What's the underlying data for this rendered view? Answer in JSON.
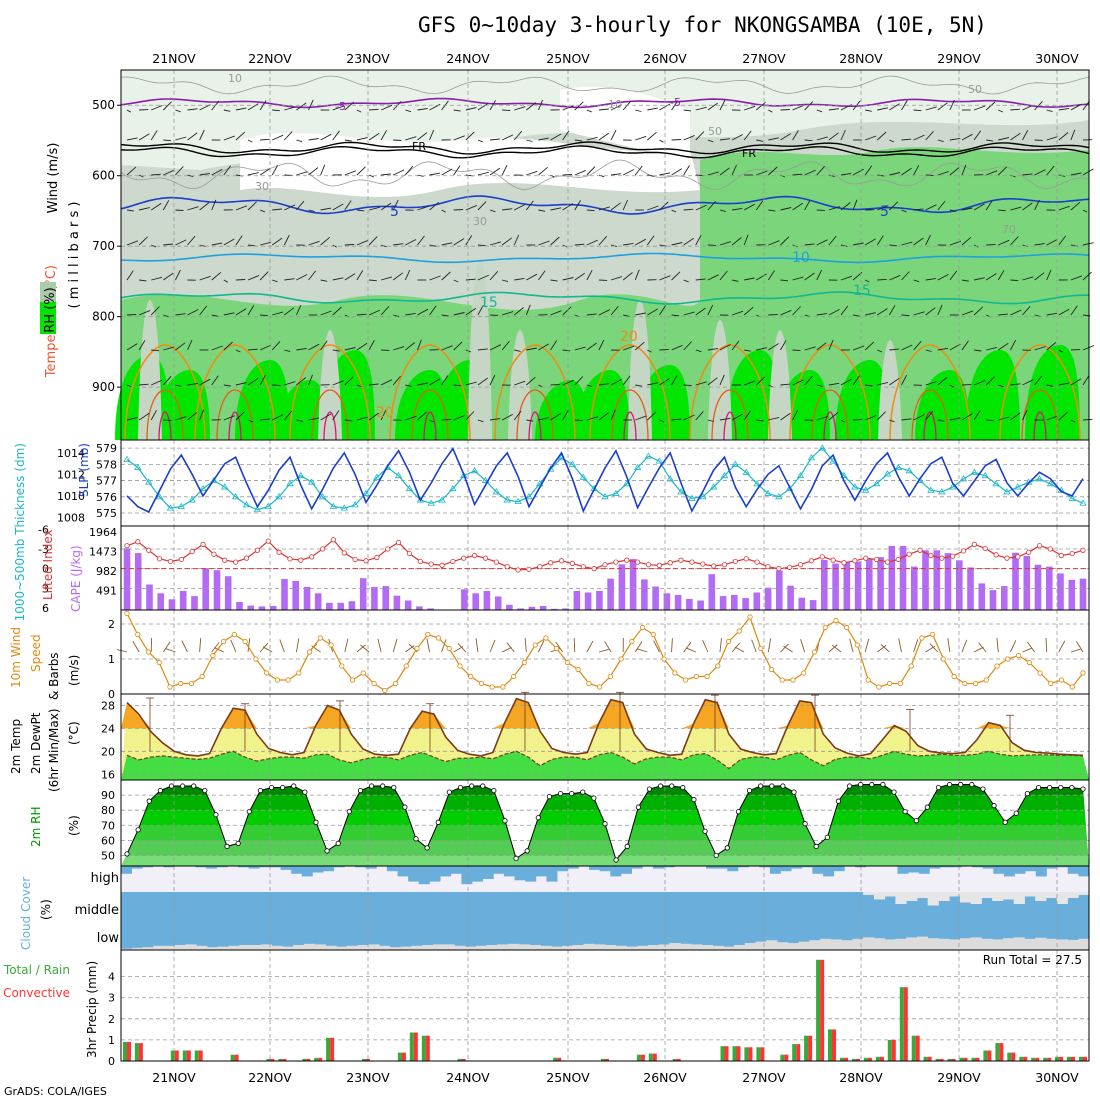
{
  "title": "GFS 0~10day 3-hourly for NKONGSAMBA (10E, 5N)",
  "credit": "GrADS: COLA/IGES",
  "dates": [
    "21NOV",
    "22NOV",
    "23NOV",
    "24NOV",
    "25NOV",
    "26NOV",
    "27NOV",
    "28NOV",
    "29NOV",
    "30NOV"
  ],
  "colors": {
    "rh_light": "#d7e8d7",
    "rh_mid": "#b9d3b9",
    "rh_green": "#66d066",
    "rh_bright": "#00e600",
    "slp": "#1a3ecc",
    "thick": "#1ab8c8",
    "li": "#dd3333",
    "cape": "#b36bf5",
    "wind": "#e08a10",
    "temp_hi": "#f5a623",
    "temp_mid": "#f2f28c",
    "dew": "#44dd44",
    "rh2m": "#009900",
    "cloud": "#6aaedc",
    "precip": "#3aa83a",
    "conv": "#ff3333"
  },
  "panels": {
    "upper": {
      "y_ticks": [
        "500",
        "600",
        "700",
        "800",
        "900"
      ],
      "ylabel_wind": "Wind (m/s)",
      "ylabel_temp": "Temperature (°C)",
      "ylabel_mb": "( m i l l i b a r s )",
      "ylabel_rh": "RH (%)",
      "labels": {
        "m5a": "-5",
        "m5b": "-5",
        "fr1": "FR",
        "fr2": "FR",
        "p5a": "5",
        "p5b": "5",
        "p10": "10",
        "p15a": "15",
        "p15b": "15",
        "p20a": "20",
        "p20b": "20",
        "r10a": "10",
        "r10b": "10",
        "r30a": "30",
        "r30b": "30",
        "r50a": "50",
        "r50b": "50",
        "r70": "70"
      }
    },
    "slp": {
      "ticks_left": [
        "579",
        "578",
        "577",
        "576",
        "575"
      ],
      "ticks_right": [
        "1014",
        "1012",
        "1010",
        "1008"
      ],
      "ylabel_thick": "1000~500mb Thickness (dm)",
      "ylabel_slp": "SLP (mb)"
    },
    "li": {
      "ticks_left": [
        "-6",
        "-3",
        "0",
        "3",
        "6"
      ],
      "ticks_right": [
        "1964",
        "1473",
        "982",
        "491"
      ],
      "ylabel_li": "Lifted Index",
      "ylabel_cape": "CAPE (J/kg)"
    },
    "wind": {
      "ticks": [
        "2",
        "1",
        "0"
      ],
      "ylabel_a": "10m Wind",
      "ylabel_b": "Speed",
      "ylabel_c": "& Barbs",
      "unit": "(m/s)"
    },
    "temp": {
      "ticks": [
        "28",
        "24",
        "20",
        "16"
      ],
      "ylabel_a": "2m Temp",
      "ylabel_b": "2m DewPt",
      "ylabel_c": "(6hr Min/Max)",
      "unit": "(°C)"
    },
    "rh": {
      "ticks": [
        "90",
        "80",
        "70",
        "60",
        "50"
      ],
      "ylabel": "2m RH",
      "unit": "(%)"
    },
    "cloud": {
      "levels": [
        "high",
        "middle",
        "low"
      ],
      "ylabel": "Cloud Cover",
      "unit": "(%)"
    },
    "precip": {
      "ticks": [
        "4",
        "3",
        "2",
        "1",
        "0"
      ],
      "ylabel_total": "Total / Rain",
      "ylabel_conv": "Convective",
      "ylabel": "3hr Precip (mm)",
      "run_total": "Run Total = 27.5"
    }
  },
  "chart_data": [
    {
      "type": "line",
      "title": "1000~500mb Thickness (dm)",
      "x": "3-hourly steps 20NOV18Z-30NOV21Z",
      "values": [
        578.3,
        577.8,
        576.9,
        576.0,
        575.3,
        575.4,
        575.8,
        576.5,
        577.0,
        576.6,
        576.0,
        575.5,
        575.2,
        575.4,
        576.0,
        576.8,
        577.3,
        576.9,
        576.0,
        575.4,
        575.3,
        575.5,
        576.2,
        577.2,
        577.8,
        577.3,
        576.5,
        575.8,
        575.6,
        575.8,
        576.5,
        577.3,
        577.6,
        577.0,
        576.3,
        575.8,
        575.7,
        576.0,
        576.8,
        577.7,
        578.4,
        578.0,
        577.2,
        576.5,
        576.0,
        576.2,
        576.8,
        577.8,
        578.5,
        578.2,
        577.1,
        576.3,
        575.9,
        576.0,
        576.6,
        577.3,
        578.0,
        577.5,
        576.8,
        576.2,
        576.0,
        576.5,
        577.3,
        578.4,
        579.0,
        578.2,
        577.3,
        576.6,
        576.4,
        576.8,
        577.4,
        577.8,
        577.6,
        577.0,
        576.4,
        576.3,
        576.6,
        577.1,
        577.5,
        577.3,
        576.8,
        576.3,
        576.6,
        576.9,
        577.1,
        576.8,
        576.4,
        575.9,
        575.6
      ]
    },
    {
      "type": "line",
      "title": "SLP (mb)",
      "x": "3-hourly steps 20NOV18Z-30NOV21Z",
      "values": [
        1010.0,
        1009.0,
        1008.5,
        1010.5,
        1012.5,
        1013.8,
        1012.0,
        1010.0,
        1011.5,
        1013.0,
        1013.6,
        1011.2,
        1009.0,
        1010.5,
        1012.4,
        1013.6,
        1011.0,
        1008.8,
        1010.6,
        1012.6,
        1014.0,
        1012.0,
        1009.4,
        1011.0,
        1012.8,
        1014.2,
        1012.2,
        1009.6,
        1011.2,
        1013.0,
        1014.4,
        1012.0,
        1009.2,
        1011.0,
        1012.8,
        1014.0,
        1011.8,
        1009.0,
        1010.8,
        1012.6,
        1014.0,
        1011.6,
        1008.6,
        1010.6,
        1012.6,
        1014.2,
        1011.8,
        1008.9,
        1010.8,
        1012.6,
        1014.0,
        1011.2,
        1008.6,
        1010.4,
        1012.4,
        1013.6,
        1010.8,
        1009.0,
        1010.6,
        1012.0,
        1012.8,
        1010.8,
        1008.8,
        1010.6,
        1012.8,
        1013.8,
        1011.4,
        1009.6,
        1011.4,
        1013.0,
        1014.0,
        1011.8,
        1010.0,
        1011.6,
        1013.0,
        1013.6,
        1011.2,
        1010.0,
        1011.4,
        1012.8,
        1013.4,
        1011.2,
        1010.0,
        1011.2,
        1012.2,
        1011.6,
        1010.4,
        1010.0,
        1011.6
      ]
    },
    {
      "type": "line",
      "title": "Lifted Index",
      "x": "3-hourly steps",
      "values": [
        -3.5,
        -4.1,
        -2.8,
        -1.5,
        -1.1,
        -1.4,
        -2.6,
        -3.7,
        -2.2,
        -1.3,
        -1.0,
        -1.6,
        -2.8,
        -4.2,
        -2.5,
        -1.5,
        -1.3,
        -1.8,
        -3.0,
        -4.4,
        -2.4,
        -1.4,
        -1.2,
        -1.7,
        -3.0,
        -4.0,
        -2.3,
        -1.1,
        -0.7,
        -0.5,
        -1.1,
        -1.6,
        -2.0,
        -1.6,
        -1.0,
        -0.3,
        0.2,
        0.1,
        -0.3,
        -0.9,
        -1.2,
        -0.8,
        -0.3,
        0.0,
        -0.6,
        -1.0,
        -1.3,
        -1.0,
        -0.6,
        -0.5,
        -0.9,
        -1.3,
        -1.0,
        -0.7,
        -0.4,
        -0.6,
        -1.1,
        -1.5,
        -1.0,
        -0.3,
        0.0,
        -0.2,
        -0.6,
        -1.2,
        -1.8,
        -1.3,
        -0.9,
        -1.2,
        -1.6,
        -1.4,
        -1.0,
        -1.4,
        -2.2,
        -2.8,
        -2.0,
        -1.6,
        -1.9,
        -2.7,
        -3.7,
        -3.1,
        -2.1,
        -1.6,
        -1.8,
        -2.5,
        -3.5,
        -3.0,
        -2.0,
        -2.3,
        -2.8
      ]
    },
    {
      "type": "bar",
      "title": "CAPE (J/kg)",
      "x": "3-hourly steps",
      "values": [
        1550,
        1430,
        640,
        420,
        270,
        480,
        350,
        1050,
        1000,
        850,
        200,
        110,
        90,
        100,
        780,
        730,
        580,
        420,
        180,
        180,
        220,
        800,
        580,
        600,
        360,
        240,
        90,
        40,
        10,
        0,
        520,
        420,
        480,
        340,
        130,
        40,
        80,
        100,
        30,
        40,
        480,
        440,
        480,
        790,
        1150,
        1280,
        770,
        590,
        420,
        380,
        280,
        240,
        900,
        350,
        380,
        300,
        440,
        560,
        990,
        610,
        310,
        250,
        1260,
        1170,
        1200,
        1220,
        1280,
        1330,
        1610,
        1610,
        1090,
        1500,
        1500,
        1430,
        1250,
        1070,
        670,
        500,
        600,
        1440,
        1360,
        1140,
        1090,
        920,
        760,
        790
      ]
    },
    {
      "type": "line",
      "title": "10m Wind Speed (m/s)",
      "x": "3-hourly steps",
      "values": [
        2.3,
        1.7,
        1.2,
        0.9,
        0.2,
        0.3,
        0.3,
        0.5,
        1.1,
        1.5,
        1.7,
        1.5,
        1.0,
        0.6,
        0.4,
        0.4,
        0.6,
        1.2,
        1.6,
        1.4,
        0.8,
        0.4,
        0.6,
        0.3,
        0.1,
        0.3,
        0.8,
        1.3,
        1.7,
        1.6,
        1.3,
        0.8,
        0.5,
        0.3,
        0.2,
        0.2,
        0.5,
        0.9,
        1.4,
        1.6,
        1.3,
        0.9,
        0.7,
        0.3,
        0.2,
        0.5,
        1.0,
        1.5,
        1.9,
        1.7,
        1.0,
        0.6,
        0.4,
        0.5,
        0.5,
        0.8,
        1.5,
        1.8,
        2.2,
        1.3,
        0.7,
        0.4,
        0.4,
        0.6,
        1.2,
        1.9,
        2.1,
        1.9,
        1.4,
        0.4,
        0.2,
        0.3,
        0.3,
        0.8,
        1.6,
        1.7,
        1.0,
        0.5,
        0.3,
        0.3,
        0.4,
        0.8,
        1.0,
        1.1,
        0.9,
        0.6,
        0.3,
        0.4,
        0.2,
        0.6
      ]
    },
    {
      "type": "area",
      "title": "2m Temp / DewPt (°C)",
      "x": "3-hourly steps",
      "temp": [
        28.5,
        26.5,
        23.5,
        21.5,
        20.0,
        19.4,
        19.2,
        19.6,
        24.0,
        27.5,
        27.2,
        23.0,
        20.5,
        19.8,
        19.4,
        19.8,
        24.5,
        28.0,
        27.2,
        23.0,
        20.4,
        19.5,
        19.3,
        19.5,
        24.0,
        27.0,
        26.5,
        22.5,
        20.2,
        19.5,
        19.2,
        19.8,
        25.0,
        29.2,
        28.5,
        23.5,
        20.5,
        19.8,
        19.5,
        19.8,
        25.0,
        29.0,
        28.5,
        23.0,
        20.4,
        19.8,
        19.3,
        19.5,
        24.8,
        29.0,
        28.5,
        23.0,
        20.4,
        19.8,
        19.4,
        19.6,
        24.5,
        28.8,
        28.5,
        23.0,
        20.6,
        19.7,
        19.2,
        19.6,
        22.0,
        24.5,
        23.5,
        21.0,
        20.0,
        19.7,
        19.6,
        19.8,
        22.0,
        25.0,
        24.5,
        21.5,
        20.2,
        19.8,
        19.7,
        19.5,
        19.4,
        19.3
      ],
      "dew": [
        19.3,
        18.5,
        19.0,
        19.2,
        19.0,
        18.8,
        18.6,
        18.8,
        19.5,
        20.0,
        19.0,
        18.3,
        18.7,
        19.0,
        19.0,
        18.8,
        19.4,
        19.5,
        18.5,
        18.0,
        18.6,
        19.0,
        19.0,
        18.5,
        19.3,
        19.8,
        19.0,
        18.2,
        18.8,
        18.8,
        19.0,
        18.7,
        19.5,
        20.0,
        19.0,
        17.5,
        18.6,
        19.0,
        19.0,
        18.5,
        19.4,
        19.8,
        19.0,
        17.8,
        18.7,
        19.0,
        19.0,
        18.5,
        19.4,
        19.6,
        18.5,
        17.0,
        18.6,
        19.0,
        19.0,
        18.5,
        19.3,
        19.8,
        18.5,
        17.5,
        18.6,
        19.0,
        19.0,
        18.7,
        19.3,
        20.0,
        19.5,
        19.2,
        19.3,
        19.5,
        19.3,
        19.3,
        19.5,
        20.0,
        19.5,
        19.2,
        19.3,
        19.4,
        19.4,
        19.3,
        19.3,
        19.2
      ]
    },
    {
      "type": "area",
      "title": "2m RH (%)",
      "x": "3-hourly steps",
      "values": [
        51,
        67,
        86,
        93,
        96,
        96,
        96,
        93,
        77,
        56,
        58,
        79,
        93,
        95,
        95,
        96,
        92,
        72,
        53,
        58,
        79,
        93,
        96,
        96,
        95,
        82,
        61,
        55,
        72,
        92,
        95,
        96,
        96,
        93,
        73,
        48,
        53,
        75,
        89,
        91,
        91,
        92,
        88,
        71,
        47,
        56,
        82,
        94,
        96,
        96,
        95,
        87,
        66,
        50,
        55,
        79,
        93,
        96,
        96,
        96,
        92,
        71,
        56,
        62,
        86,
        96,
        97,
        97,
        97,
        92,
        79,
        73,
        82,
        95,
        97,
        97,
        97,
        94,
        83,
        72,
        78,
        91,
        95,
        95,
        95,
        95,
        94
      ]
    },
    {
      "type": "area",
      "title": "Cloud Cover (%)",
      "levels": [
        "high",
        "middle",
        "low"
      ],
      "high": [
        30,
        10,
        5,
        0,
        5,
        0,
        0,
        5,
        10,
        5,
        0,
        5,
        10,
        5,
        5,
        15,
        30,
        40,
        25,
        20,
        5,
        0,
        5,
        10,
        0,
        20,
        40,
        60,
        70,
        60,
        40,
        30,
        70,
        60,
        50,
        30,
        40,
        55,
        60,
        40,
        60,
        20,
        10,
        0,
        15,
        20,
        40,
        30,
        10,
        0,
        10,
        5,
        0,
        0,
        0,
        10,
        10,
        20,
        5,
        0,
        5,
        30,
        20,
        10,
        5,
        30,
        40,
        20,
        0,
        5,
        0,
        0,
        0,
        30,
        25,
        30,
        10,
        5,
        5,
        0,
        5,
        10,
        30,
        40,
        30,
        20,
        40,
        10,
        5,
        30,
        40
      ],
      "middle": [
        100,
        100,
        100,
        100,
        100,
        100,
        100,
        100,
        100,
        100,
        100,
        100,
        100,
        100,
        100,
        100,
        100,
        100,
        100,
        100,
        100,
        100,
        100,
        100,
        100,
        100,
        100,
        100,
        100,
        100,
        100,
        100,
        100,
        100,
        100,
        100,
        100,
        100,
        100,
        100,
        100,
        100,
        100,
        100,
        100,
        100,
        100,
        100,
        100,
        100,
        100,
        100,
        100,
        100,
        100,
        100,
        100,
        100,
        100,
        100,
        100,
        100,
        100,
        100,
        100,
        100,
        100,
        100,
        100,
        90,
        75,
        85,
        60,
        70,
        80,
        55,
        70,
        85,
        65,
        60,
        80,
        70,
        75,
        60,
        85,
        70,
        80,
        60,
        80,
        90
      ],
      "low": [
        5,
        8,
        10,
        15,
        15,
        18,
        20,
        15,
        10,
        12,
        15,
        18,
        18,
        20,
        15,
        12,
        18,
        22,
        20,
        15,
        12,
        15,
        18,
        20,
        15,
        10,
        12,
        15,
        18,
        20,
        20,
        15,
        12,
        15,
        18,
        20,
        22,
        20,
        18,
        15,
        12,
        15,
        18,
        22,
        20,
        18,
        15,
        12,
        15,
        18,
        20,
        25,
        22,
        20,
        18,
        15,
        12,
        18,
        25,
        30,
        35,
        28,
        25,
        30,
        35,
        40,
        38,
        35,
        40,
        45,
        42,
        38,
        40,
        45,
        48,
        42,
        40,
        38,
        42,
        45,
        40,
        38,
        42,
        45,
        40,
        44,
        40,
        38,
        36,
        40
      ]
    },
    {
      "type": "bar",
      "title": "3hr Precip (mm)",
      "x": "3-hourly steps",
      "total": [
        0.9,
        0.85,
        0,
        0,
        0.5,
        0.5,
        0.5,
        0,
        0,
        0.3,
        0,
        0,
        0.1,
        0.1,
        0,
        0.1,
        0.15,
        1.1,
        0,
        0,
        0.1,
        0,
        0,
        0.4,
        1.35,
        1.2,
        0,
        0,
        0.1,
        0,
        0,
        0,
        0,
        0,
        0,
        0,
        0.15,
        0,
        0,
        0,
        0.1,
        0,
        0,
        0.3,
        0.35,
        0,
        0.1,
        0,
        0,
        0,
        0.7,
        0.7,
        0.65,
        0.65,
        0,
        0.3,
        0.8,
        1.2,
        4.8,
        1.5,
        0.15,
        0.1,
        0.15,
        0.2,
        1.0,
        3.5,
        1.2,
        0.2,
        0.1,
        0.1,
        0.15,
        0.15,
        0.5,
        0.85,
        0.4,
        0.2,
        0.15,
        0.15,
        0.2,
        0.2,
        0.2
      ],
      "convective": [
        0.9,
        0.85,
        0,
        0,
        0.5,
        0.5,
        0.5,
        0,
        0,
        0.3,
        0,
        0,
        0.1,
        0.1,
        0,
        0.1,
        0.15,
        1.1,
        0,
        0,
        0.1,
        0,
        0,
        0.4,
        1.35,
        1.2,
        0,
        0,
        0.1,
        0,
        0,
        0,
        0,
        0,
        0,
        0,
        0.15,
        0,
        0,
        0,
        0.1,
        0,
        0,
        0.3,
        0.35,
        0,
        0.1,
        0,
        0,
        0,
        0.7,
        0.7,
        0.65,
        0.65,
        0,
        0.3,
        0.8,
        1.2,
        4.8,
        1.5,
        0.15,
        0.1,
        0.15,
        0.2,
        1.0,
        3.5,
        1.2,
        0.2,
        0.1,
        0.1,
        0.15,
        0.15,
        0.5,
        0.85,
        0.4,
        0.2,
        0.15,
        0.15,
        0.2,
        0.2,
        0.2
      ]
    }
  ]
}
